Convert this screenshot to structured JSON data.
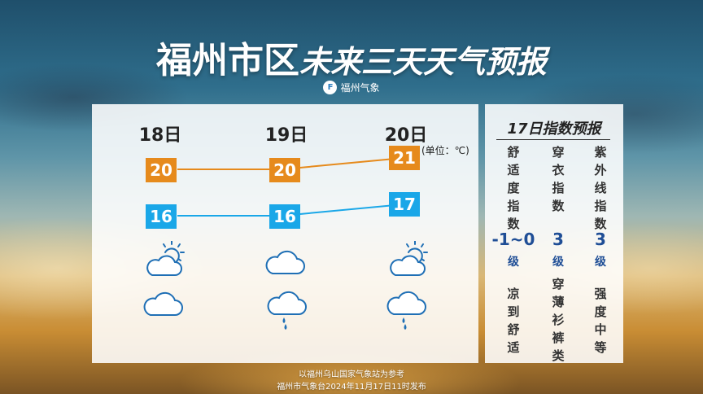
{
  "title": {
    "main": "福州市区",
    "sub": "未来三天天气预报"
  },
  "brand": {
    "icon_text": "F",
    "name": "福州气象"
  },
  "forecast": {
    "unit": "(单位：℃)",
    "days": [
      {
        "label": "18日",
        "high": "20",
        "low": "16",
        "day_icon": "partly-cloudy-sun-icon",
        "night_icon": "cloudy-icon"
      },
      {
        "label": "19日",
        "high": "20",
        "low": "16",
        "day_icon": "cloudy-icon",
        "night_icon": "light-rain-icon"
      },
      {
        "label": "20日",
        "high": "21",
        "low": "17",
        "day_icon": "partly-cloudy-sun-icon",
        "night_icon": "light-rain-icon"
      }
    ],
    "colors": {
      "high": "#e68a1c",
      "low": "#1aa7e8",
      "icon": "#1f6fb5"
    }
  },
  "indices": {
    "title": "17日指数预报",
    "items": [
      {
        "name": "舒适度指数",
        "value": "-1~0",
        "level": "级",
        "desc": "凉到舒适"
      },
      {
        "name": "穿衣指数",
        "value": "3",
        "level": "级",
        "desc": "穿薄衫裤类"
      },
      {
        "name": "紫外线指数",
        "value": "3",
        "level": "级",
        "desc": "强度中等"
      }
    ]
  },
  "footer": {
    "line1": "以福州乌山国家气象站为参考",
    "line2": "福州市气象台2024年11月17日11时发布"
  }
}
